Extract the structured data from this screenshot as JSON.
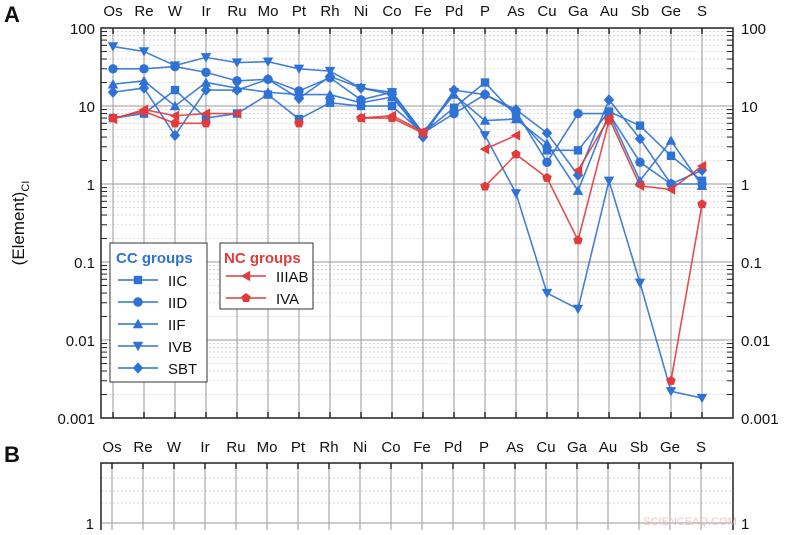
{
  "chart_data": [
    {
      "panel": "A",
      "type": "line",
      "ylabel": "(Element)",
      "ylabel_sub": "CI",
      "yscale": "log",
      "ylim": [
        0.001,
        100
      ],
      "yticks": [
        "100",
        "10",
        "1",
        "0.1",
        "0.01",
        "0.001"
      ],
      "grid": true,
      "categories": [
        "Os",
        "Re",
        "W",
        "Ir",
        "Ru",
        "Mo",
        "Pt",
        "Rh",
        "Ni",
        "Co",
        "Fe",
        "Pd",
        "P",
        "As",
        "Cu",
        "Ga",
        "Au",
        "Sb",
        "Ge",
        "S"
      ],
      "legend": [
        {
          "title": "CC groups",
          "color": "#2f72d6",
          "series": [
            "IIC",
            "IID",
            "IIF",
            "IVB",
            "SBT"
          ]
        },
        {
          "title": "NC groups",
          "color": "#e23b3b",
          "series": [
            "IIIAB",
            "IVA"
          ]
        }
      ],
      "series": [
        {
          "name": "IIC",
          "color": "#2f72d6",
          "marker": "square",
          "values": [
            7,
            8,
            16,
            7,
            8,
            14,
            6.8,
            11,
            10,
            10,
            4.5,
            9.5,
            20,
            7.5,
            2.7,
            2.7,
            8.5,
            5.6,
            2.3,
            1.1
          ]
        },
        {
          "name": "IID",
          "color": "#2f72d6",
          "marker": "circle",
          "values": [
            30,
            30,
            32,
            27,
            21,
            22,
            15.6,
            23,
            12,
            15,
            4.5,
            8,
            14,
            8.5,
            1.9,
            8,
            8,
            1.9,
            1.0,
            1.0
          ]
        },
        {
          "name": "IIF",
          "color": "#2f72d6",
          "marker": "triangle-up",
          "values": [
            19,
            21,
            10,
            20,
            17,
            15,
            14,
            14,
            11,
            13,
            4.5,
            14,
            6.5,
            6.8,
            3.3,
            0.82,
            8,
            1.1,
            3.6,
            0.95
          ]
        },
        {
          "name": "IVB",
          "color": "#2f72d6",
          "marker": "triangle-down",
          "values": [
            58,
            50,
            33,
            42,
            36,
            37,
            30,
            28,
            17,
            15,
            4.5,
            15,
            4.2,
            0.76,
            0.04,
            0.025,
            1.1,
            0.054,
            0.0022,
            0.0018
          ]
        },
        {
          "name": "SBT",
          "color": "#2f72d6",
          "marker": "diamond",
          "values": [
            15,
            17,
            4.2,
            16,
            16,
            22,
            12.5,
            24,
            17,
            14,
            4,
            16,
            14,
            9,
            4.5,
            1.3,
            12,
            3.8,
            1.0,
            1.5
          ]
        },
        {
          "name": "IIIAB",
          "color": "#e23b3b",
          "marker": "triangle-left",
          "values": [
            6.8,
            9,
            7.5,
            8,
            8,
            null,
            null,
            null,
            7,
            7.5,
            4.7,
            null,
            2.8,
            4.2,
            null,
            1.5,
            7,
            0.95,
            0.85,
            1.7
          ]
        },
        {
          "name": "IVA",
          "color": "#e23b3b",
          "marker": "pentagon",
          "values": [
            7,
            8.5,
            6,
            6,
            null,
            null,
            6,
            null,
            7,
            7,
            4.5,
            null,
            0.93,
            2.4,
            1.2,
            0.19,
            6.5,
            null,
            0.003,
            0.55
          ]
        }
      ]
    },
    {
      "panel": "B",
      "type": "line",
      "categories": [
        "Os",
        "Re",
        "W",
        "Ir",
        "Ru",
        "Mo",
        "Pt",
        "Rh",
        "Ni",
        "Co",
        "Fe",
        "Pd",
        "P",
        "As",
        "Cu",
        "Ga",
        "Au",
        "Sb",
        "Ge",
        "S"
      ],
      "yticks": [
        "1"
      ]
    }
  ],
  "watermark": "SCIENCEAQ.COM"
}
